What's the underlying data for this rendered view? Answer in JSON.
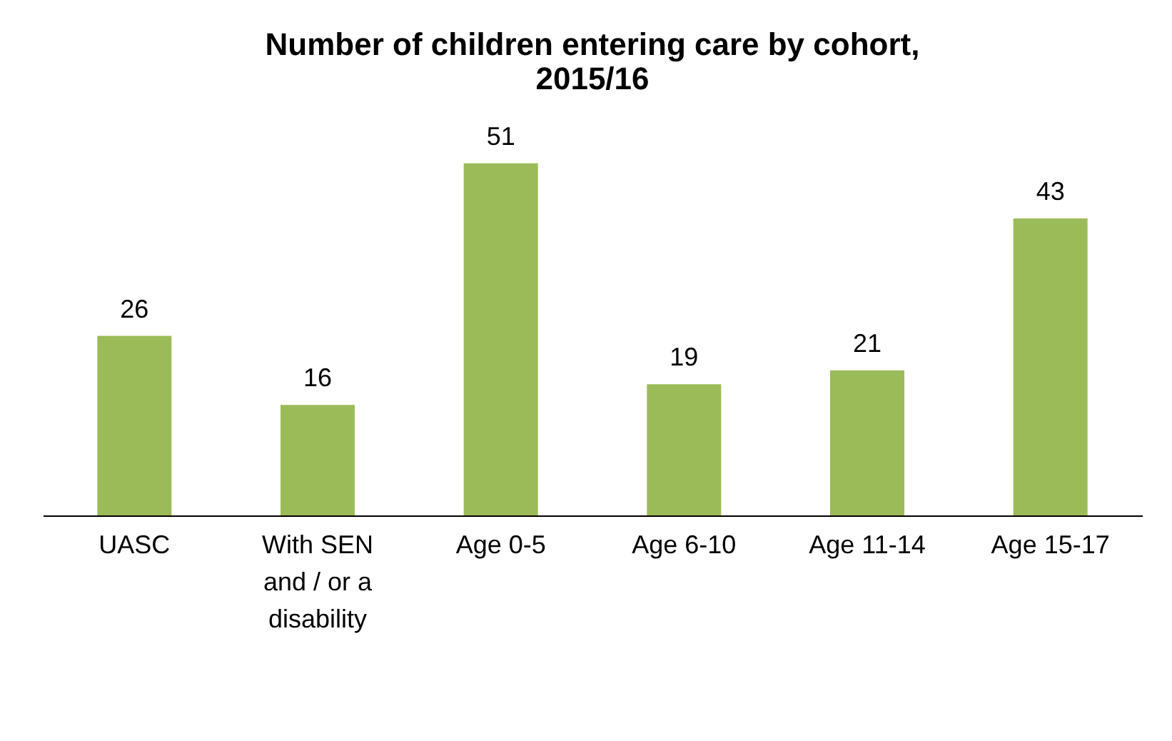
{
  "chart_data": {
    "type": "bar",
    "title": "Number of children entering care by cohort, 2015/16",
    "categories": [
      "UASC",
      "With SEN and / or a disability",
      "Age 0-5",
      "Age 6-10",
      "Age 11-14",
      "Age 15-17"
    ],
    "values": [
      26,
      16,
      51,
      19,
      21,
      43
    ],
    "color": "#9bbb59",
    "data_labels": true,
    "grid": false
  }
}
